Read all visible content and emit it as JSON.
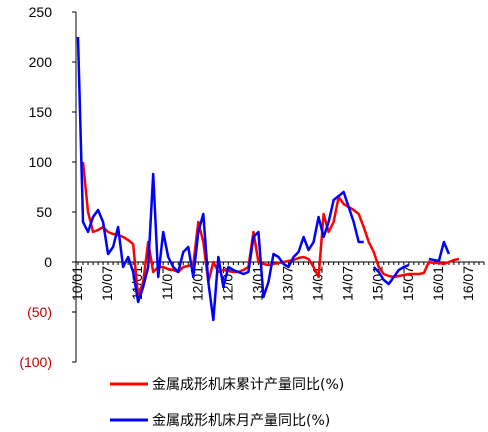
{
  "chart_data": {
    "type": "line",
    "title": "",
    "xlabel": "",
    "ylabel": "",
    "ylim": [
      -100,
      250
    ],
    "yticks": [
      250,
      200,
      150,
      100,
      50,
      0,
      -50,
      -100
    ],
    "ytick_labels": [
      "250",
      "200",
      "150",
      "100",
      "50",
      "0",
      "(50)",
      "(100)"
    ],
    "xticks": [
      {
        "label": "10/01",
        "at": 0
      },
      {
        "label": "10/07",
        "at": 6
      },
      {
        "label": "11/01",
        "at": 12
      },
      {
        "label": "11/07",
        "at": 18
      },
      {
        "label": "12/01",
        "at": 24
      },
      {
        "label": "12/07",
        "at": 30
      },
      {
        "label": "13/01",
        "at": 36
      },
      {
        "label": "13/07",
        "at": 42
      },
      {
        "label": "14/01",
        "at": 48
      },
      {
        "label": "14/07",
        "at": 54
      },
      {
        "label": "15/01",
        "at": 60
      },
      {
        "label": "15/07",
        "at": 66
      },
      {
        "label": "16/01",
        "at": 72
      },
      {
        "label": "16/07",
        "at": 78
      }
    ],
    "x_count": 82,
    "grid": false,
    "legend_position": "bottom",
    "series": [
      {
        "name": "金属成形机床累计产量同比(%)",
        "color": "#ff0000",
        "values": [
          null,
          100,
          50,
          30,
          32,
          35,
          30,
          28,
          27,
          25,
          22,
          18,
          -35,
          -20,
          20,
          -10,
          -5,
          -5,
          -7,
          -8,
          -10,
          -5,
          -4,
          -3,
          40,
          20,
          -20,
          0,
          -10,
          -8,
          -9,
          -10,
          -10,
          -8,
          -5,
          30,
          0,
          -2,
          -3,
          -2,
          -1,
          0,
          1,
          2,
          4,
          5,
          3,
          -5,
          -15,
          48,
          30,
          40,
          65,
          58,
          55,
          52,
          48,
          35,
          20,
          10,
          -5,
          -12,
          -14,
          -15,
          -14,
          -13,
          -12,
          -12,
          -12,
          -11,
          0,
          -1,
          -1,
          -2,
          0,
          2,
          3,
          null,
          null,
          null,
          null,
          null
        ]
      },
      {
        "name": "金属成形机床月产量同比(%)",
        "color": "#0000ff",
        "values": [
          225,
          40,
          30,
          45,
          52,
          40,
          8,
          15,
          35,
          -5,
          5,
          -10,
          -40,
          -25,
          -5,
          88,
          -15,
          30,
          5,
          -5,
          -10,
          10,
          15,
          -15,
          30,
          48,
          -20,
          -58,
          5,
          -25,
          -5,
          -8,
          -10,
          -12,
          -10,
          25,
          30,
          -35,
          -20,
          8,
          5,
          -2,
          -5,
          5,
          10,
          25,
          12,
          20,
          45,
          25,
          40,
          62,
          66,
          70,
          55,
          40,
          20,
          20,
          null,
          -5,
          -10,
          -18,
          -22,
          -15,
          -8,
          -5,
          -3,
          null,
          null,
          null,
          3,
          2,
          1,
          20,
          8,
          null,
          null,
          null,
          null,
          null,
          null,
          null
        ]
      }
    ]
  }
}
